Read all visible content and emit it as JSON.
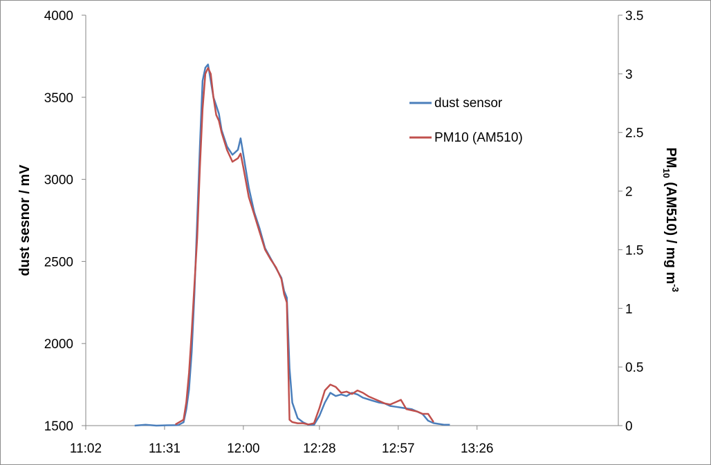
{
  "chart_data": {
    "type": "line",
    "title": "",
    "ylabel": "dust sesnor / mV",
    "y2label": {
      "main": "PM",
      "sub": "10",
      "rest": " (AM510) / mg m",
      "sup": "-3"
    },
    "xlabel": "",
    "x_ticks": [
      "11:02",
      "11:31",
      "12:00",
      "12:28",
      "12:57",
      "13:26"
    ],
    "x_tick_minutes": [
      662,
      691,
      720,
      748,
      777,
      806
    ],
    "xlim_minutes": [
      662,
      858
    ],
    "ylim": [
      1500,
      4000
    ],
    "y_ticks": [
      1500,
      2000,
      2500,
      3000,
      3500,
      4000
    ],
    "y2lim": [
      0,
      3.5
    ],
    "y2_ticks": [
      "0",
      "0.5",
      "1",
      "1.5",
      "2",
      "2.5",
      "3",
      "3.5"
    ],
    "legend_position": "top-right",
    "grid": false,
    "series": [
      {
        "name": "dust sensor",
        "axis": "left",
        "color": "#4a7ebb",
        "x_minutes": [
          680,
          684,
          688,
          692,
          696,
          698,
          699,
          700,
          701,
          702,
          703,
          704,
          705,
          706,
          707,
          708,
          709,
          710,
          711,
          712,
          714,
          716,
          718,
          719,
          720,
          722,
          724,
          726,
          728,
          730,
          732,
          734,
          735,
          736,
          737,
          738,
          740,
          742,
          744,
          746,
          748,
          750,
          752,
          754,
          756,
          758,
          760,
          762,
          764,
          766,
          768,
          770,
          772,
          774,
          776,
          778,
          780,
          782,
          784,
          786,
          788,
          790,
          792,
          794,
          796
        ],
        "values": [
          1500,
          1505,
          1500,
          1502,
          1503,
          1520,
          1600,
          1720,
          1950,
          2300,
          2750,
          3200,
          3600,
          3680,
          3700,
          3600,
          3500,
          3450,
          3400,
          3300,
          3200,
          3150,
          3180,
          3250,
          3150,
          2950,
          2800,
          2700,
          2580,
          2520,
          2460,
          2400,
          2320,
          2280,
          1850,
          1640,
          1545,
          1520,
          1505,
          1505,
          1560,
          1640,
          1700,
          1680,
          1690,
          1680,
          1700,
          1690,
          1670,
          1660,
          1650,
          1640,
          1635,
          1620,
          1615,
          1610,
          1605,
          1600,
          1585,
          1570,
          1530,
          1515,
          1510,
          1505,
          1505
        ]
      },
      {
        "name": "PM10 (AM510)",
        "axis": "right",
        "color": "#c0504d",
        "x_minutes": [
          695,
          698,
          699,
          700,
          701,
          702,
          703,
          704,
          705,
          706,
          707,
          708,
          709,
          710,
          711,
          712,
          714,
          716,
          718,
          719,
          720,
          722,
          724,
          726,
          728,
          730,
          732,
          734,
          735,
          736,
          737,
          738,
          740,
          742,
          744,
          746,
          748,
          750,
          752,
          754,
          756,
          758,
          760,
          762,
          764,
          766,
          768,
          770,
          772,
          774,
          776,
          778,
          780,
          782,
          784,
          786,
          788,
          790
        ],
        "values": [
          0.01,
          0.05,
          0.2,
          0.45,
          0.8,
          1.2,
          1.6,
          2.2,
          2.7,
          3.0,
          3.05,
          3.0,
          2.8,
          2.65,
          2.6,
          2.5,
          2.35,
          2.25,
          2.28,
          2.32,
          2.2,
          1.95,
          1.8,
          1.65,
          1.5,
          1.42,
          1.35,
          1.25,
          1.12,
          1.05,
          0.05,
          0.03,
          0.02,
          0.02,
          0.01,
          0.02,
          0.15,
          0.3,
          0.35,
          0.33,
          0.28,
          0.29,
          0.27,
          0.3,
          0.28,
          0.25,
          0.23,
          0.21,
          0.19,
          0.18,
          0.2,
          0.22,
          0.14,
          0.13,
          0.12,
          0.1,
          0.1,
          0.03
        ]
      }
    ]
  }
}
